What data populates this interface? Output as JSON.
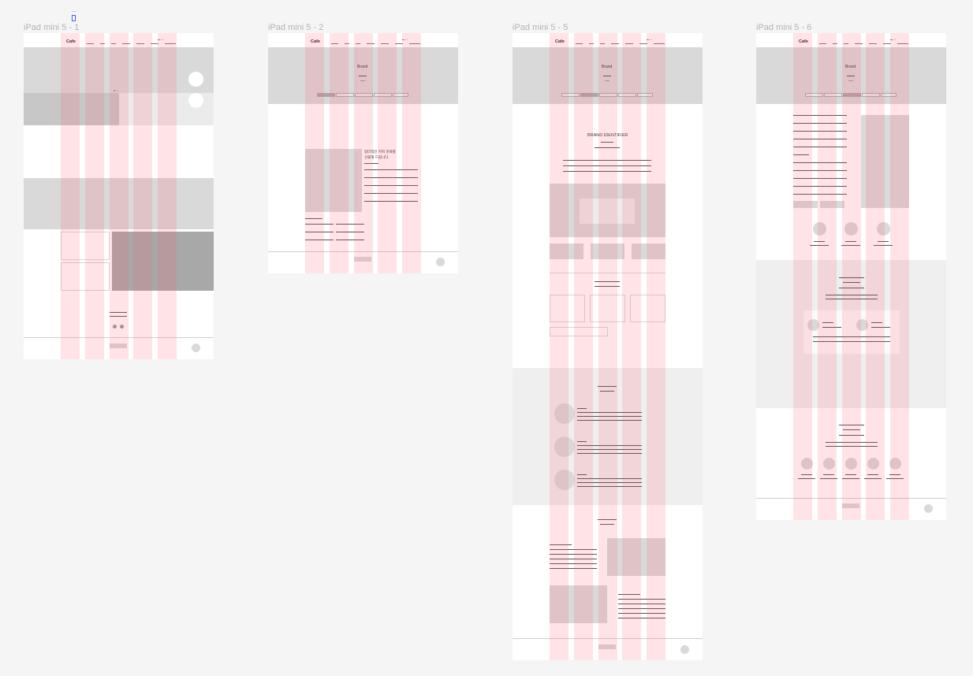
{
  "frames": [
    {
      "label": "iPad mini 5 - 1",
      "logo": "Cafe"
    },
    {
      "label": "iPad mini 5 - 2",
      "logo": "Cafe",
      "hero_title": "Brand",
      "text_line1": "합리적인 커피 문화를",
      "text_line2": "선물해 드립니다."
    },
    {
      "label": "iPad mini 5 - 5",
      "logo": "Cafe",
      "hero_title": "Brand",
      "section_title": "BRAND IDENTIFIER"
    },
    {
      "label": "iPad mini 5 - 6",
      "logo": "Cafe",
      "hero_title": "Brand"
    }
  ],
  "selection_indicator": "...",
  "colors": {
    "canvas": "#f5f5f5",
    "frame": "#ffffff",
    "placeholder": "#d9d9d9",
    "layout_grid": "#ff5a6e"
  }
}
